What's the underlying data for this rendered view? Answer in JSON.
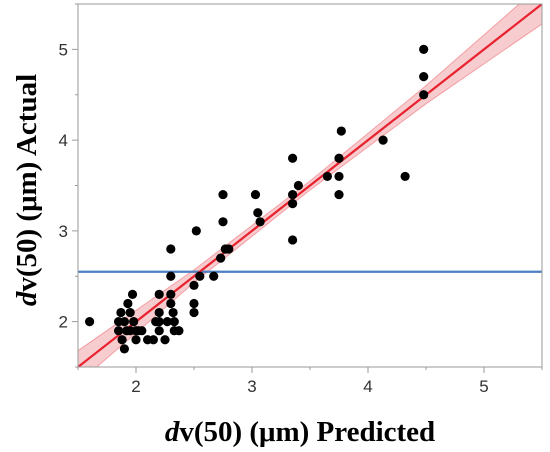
{
  "chart_data": {
    "type": "scatter",
    "title": "",
    "xlabel_prefix": "d",
    "xlabel_rest": "v(50) (μm) Predicted",
    "ylabel_prefix": "d",
    "ylabel_rest": "v(50) (μm) Actual",
    "xlim": [
      1.5,
      5.5
    ],
    "ylim": [
      1.5,
      5.5
    ],
    "xticks": [
      2,
      3,
      4,
      5
    ],
    "yticks": [
      2,
      3,
      4,
      5
    ],
    "grid": false,
    "points": [
      {
        "x": 1.6,
        "y": 2.0
      },
      {
        "x": 1.85,
        "y": 2.0
      },
      {
        "x": 1.85,
        "y": 1.9
      },
      {
        "x": 1.87,
        "y": 2.1
      },
      {
        "x": 1.88,
        "y": 1.8
      },
      {
        "x": 1.9,
        "y": 1.7
      },
      {
        "x": 1.9,
        "y": 2.0
      },
      {
        "x": 1.92,
        "y": 1.9
      },
      {
        "x": 1.93,
        "y": 2.2
      },
      {
        "x": 1.95,
        "y": 1.9
      },
      {
        "x": 1.95,
        "y": 2.1
      },
      {
        "x": 1.97,
        "y": 2.3
      },
      {
        "x": 1.98,
        "y": 2.0
      },
      {
        "x": 2.0,
        "y": 1.8
      },
      {
        "x": 2.0,
        "y": 1.9
      },
      {
        "x": 2.02,
        "y": 1.9
      },
      {
        "x": 2.05,
        "y": 1.9
      },
      {
        "x": 2.1,
        "y": 1.8
      },
      {
        "x": 2.15,
        "y": 1.8
      },
      {
        "x": 2.17,
        "y": 2.0
      },
      {
        "x": 2.2,
        "y": 1.9
      },
      {
        "x": 2.2,
        "y": 2.0
      },
      {
        "x": 2.2,
        "y": 2.1
      },
      {
        "x": 2.2,
        "y": 2.3
      },
      {
        "x": 2.25,
        "y": 1.8
      },
      {
        "x": 2.27,
        "y": 2.0
      },
      {
        "x": 2.3,
        "y": 2.2
      },
      {
        "x": 2.3,
        "y": 2.5
      },
      {
        "x": 2.3,
        "y": 2.8
      },
      {
        "x": 2.3,
        "y": 2.3
      },
      {
        "x": 2.32,
        "y": 2.1
      },
      {
        "x": 2.33,
        "y": 2.0
      },
      {
        "x": 2.33,
        "y": 1.9
      },
      {
        "x": 2.37,
        "y": 1.9
      },
      {
        "x": 2.5,
        "y": 2.1
      },
      {
        "x": 2.5,
        "y": 2.2
      },
      {
        "x": 2.5,
        "y": 2.4
      },
      {
        "x": 2.52,
        "y": 3.0
      },
      {
        "x": 2.55,
        "y": 2.5
      },
      {
        "x": 2.67,
        "y": 2.5
      },
      {
        "x": 2.73,
        "y": 2.7
      },
      {
        "x": 2.75,
        "y": 3.1
      },
      {
        "x": 2.75,
        "y": 3.4
      },
      {
        "x": 2.77,
        "y": 2.8
      },
      {
        "x": 2.8,
        "y": 2.8
      },
      {
        "x": 3.03,
        "y": 3.4
      },
      {
        "x": 3.05,
        "y": 3.2
      },
      {
        "x": 3.07,
        "y": 3.1
      },
      {
        "x": 3.35,
        "y": 3.8
      },
      {
        "x": 3.35,
        "y": 3.3
      },
      {
        "x": 3.35,
        "y": 3.4
      },
      {
        "x": 3.35,
        "y": 2.9
      },
      {
        "x": 3.4,
        "y": 3.5
      },
      {
        "x": 3.65,
        "y": 3.6
      },
      {
        "x": 3.75,
        "y": 3.4
      },
      {
        "x": 3.75,
        "y": 3.6
      },
      {
        "x": 3.75,
        "y": 3.8
      },
      {
        "x": 3.77,
        "y": 4.1
      },
      {
        "x": 4.13,
        "y": 4.0
      },
      {
        "x": 4.32,
        "y": 3.6
      },
      {
        "x": 4.48,
        "y": 4.5
      },
      {
        "x": 4.48,
        "y": 4.7
      },
      {
        "x": 4.48,
        "y": 5.0
      }
    ],
    "fit_line": {
      "x": [
        1.5,
        5.5
      ],
      "y": [
        1.5,
        5.5
      ],
      "color": "#e8222e"
    },
    "confidence_band": {
      "x": [
        1.5,
        2.5,
        3.5,
        4.5,
        5.5
      ],
      "upper": [
        1.68,
        2.57,
        3.55,
        4.6,
        5.72
      ],
      "lower": [
        1.32,
        2.43,
        3.45,
        4.4,
        5.28
      ],
      "color": "#f4b6bb"
    },
    "mean_line": {
      "y": 2.55,
      "color": "#4a7fc1"
    },
    "point_color": "#000000"
  }
}
